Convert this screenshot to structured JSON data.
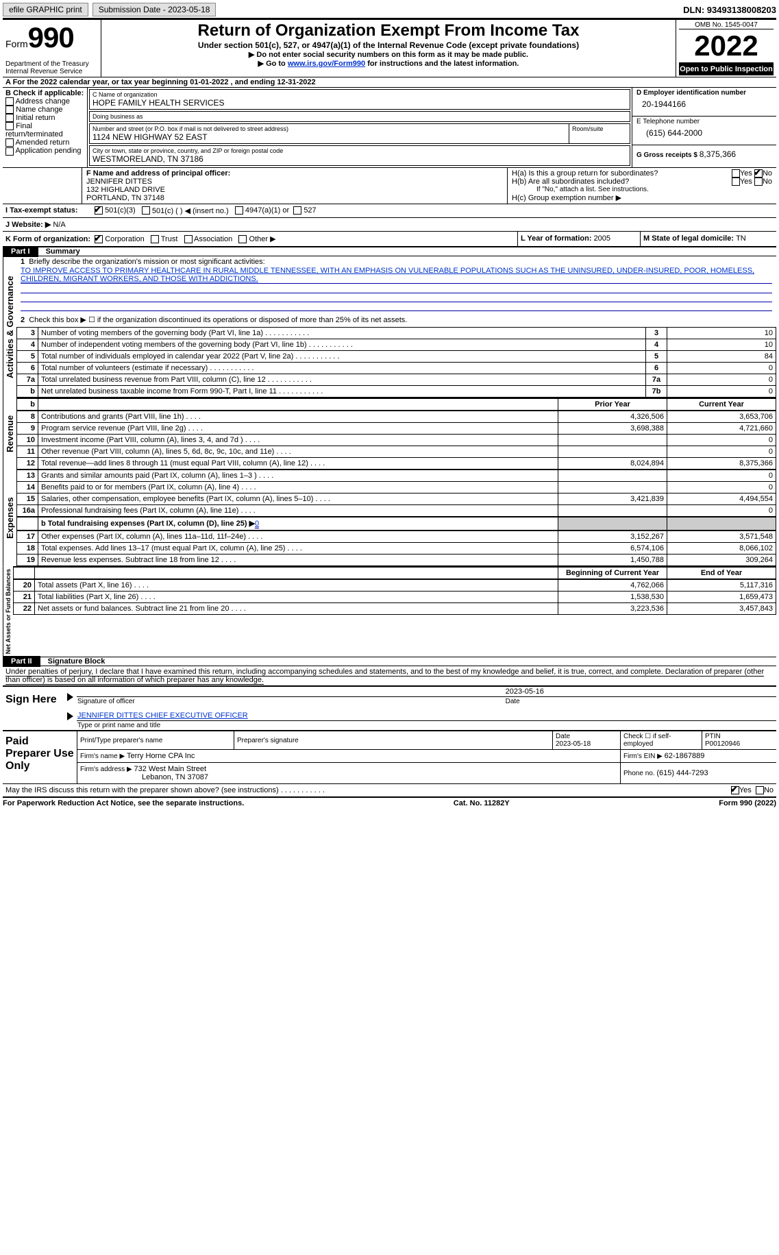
{
  "toolbar": {
    "efile_label": "efile GRAPHIC print",
    "submission_label": "Submission Date - 2023-05-18",
    "dln_label": "DLN: 93493138008203"
  },
  "header": {
    "form_word": "Form",
    "form_number": "990",
    "dept": "Department of the Treasury\nInternal Revenue Service",
    "title": "Return of Organization Exempt From Income Tax",
    "subtitle": "Under section 501(c), 527, or 4947(a)(1) of the Internal Revenue Code (except private foundations)",
    "warn1": "▶ Do not enter social security numbers on this form as it may be made public.",
    "warn2_pre": "▶ Go to ",
    "warn2_link": "www.irs.gov/Form990",
    "warn2_post": " for instructions and the latest information.",
    "omb": "OMB No. 1545-0047",
    "year": "2022",
    "inspect": "Open to Public Inspection"
  },
  "lineA": {
    "pre": "A For the 2022 calendar year, or tax year beginning ",
    "begin": "01-01-2022",
    "mid": "   , and ending ",
    "end": "12-31-2022"
  },
  "sectionB": {
    "title": "B Check if applicable:",
    "items": [
      "Address change",
      "Name change",
      "Initial return",
      "Final return/terminated",
      "Amended return",
      "Application pending"
    ]
  },
  "sectionC": {
    "name_label": "C Name of organization",
    "name": "HOPE FAMILY HEALTH SERVICES",
    "dba_label": "Doing business as",
    "dba": "",
    "addr_label": "Number and street (or P.O. box if mail is not delivered to street address)",
    "room_label": "Room/suite",
    "addr": "1124 NEW HIGHWAY 52 EAST",
    "city_label": "City or town, state or province, country, and ZIP or foreign postal code",
    "city": "WESTMORELAND, TN  37186"
  },
  "sectionD": {
    "label": "D Employer identification number",
    "value": "20-1944166"
  },
  "sectionE": {
    "label": "E Telephone number",
    "value": "(615) 644-2000"
  },
  "sectionG": {
    "label": "G Gross receipts $ ",
    "value": "8,375,366"
  },
  "sectionF": {
    "label": "F Name and address of principal officer:",
    "name": "JENNIFER DITTES",
    "addr1": "132 HIGHLAND DRIVE",
    "addr2": "PORTLAND, TN  37148"
  },
  "sectionH": {
    "a": "H(a)  Is this a group return for subordinates?",
    "b": "H(b)  Are all subordinates included?",
    "b_note": "If \"No,\" attach a list. See instructions.",
    "c": "H(c)  Group exemption number ▶",
    "yes": "Yes",
    "no": "No"
  },
  "sectionI": {
    "label": "I    Tax-exempt status:",
    "opt1": "501(c)(3)",
    "opt2": "501(c) (  ) ◀ (insert no.)",
    "opt3": "4947(a)(1) or",
    "opt4": "527"
  },
  "sectionJ": {
    "label": "J   Website: ▶",
    "value": "  N/A"
  },
  "sectionK": {
    "label": "K Form of organization:",
    "o1": "Corporation",
    "o2": "Trust",
    "o3": "Association",
    "o4": "Other ▶"
  },
  "sectionL": {
    "label": "L Year of formation: ",
    "value": "2005"
  },
  "sectionM": {
    "label": "M State of legal domicile: ",
    "value": "TN"
  },
  "parts": {
    "p1": "Part I",
    "p1_title": "Summary",
    "p2": "Part II",
    "p2_title": "Signature Block"
  },
  "vlabels": {
    "act": "Activities & Governance",
    "rev": "Revenue",
    "exp": "Expenses",
    "net": "Net Assets or Fund Balances"
  },
  "summary": {
    "l1_pre": "Briefly describe the organization's mission or most significant activities:",
    "l1_text": "TO IMPROVE ACCESS TO PRIMARY HEALTHCARE IN RURAL MIDDLE TENNESSEE, WITH AN EMPHASIS ON VULNERABLE POPULATIONS SUCH AS THE UNINSURED, UNDER-INSURED, POOR, HOMELESS, CHILDREN, MIGRANT WORKERS, AND THOSE WITH ADDICTIONS.",
    "l2": "Check this box ▶ ☐  if the organization discontinued its operations or disposed of more than 25% of its net assets.",
    "rows_a": [
      {
        "n": "3",
        "d": "Number of voting members of the governing body (Part VI, line 1a)",
        "box": "3",
        "v": "10"
      },
      {
        "n": "4",
        "d": "Number of independent voting members of the governing body (Part VI, line 1b)",
        "box": "4",
        "v": "10"
      },
      {
        "n": "5",
        "d": "Total number of individuals employed in calendar year 2022 (Part V, line 2a)",
        "box": "5",
        "v": "84"
      },
      {
        "n": "6",
        "d": "Total number of volunteers (estimate if necessary)",
        "box": "6",
        "v": "0"
      },
      {
        "n": "7a",
        "d": "Total unrelated business revenue from Part VIII, column (C), line 12",
        "box": "7a",
        "v": "0"
      },
      {
        "n": "b",
        "d": "Net unrelated business taxable income from Form 990-T, Part I, line 11",
        "box": "7b",
        "v": "0"
      }
    ],
    "hdr_prior": "Prior Year",
    "hdr_current": "Current Year",
    "rows_rev": [
      {
        "n": "8",
        "d": "Contributions and grants (Part VIII, line 1h)",
        "p": "4,326,506",
        "c": "3,653,706"
      },
      {
        "n": "9",
        "d": "Program service revenue (Part VIII, line 2g)",
        "p": "3,698,388",
        "c": "4,721,660"
      },
      {
        "n": "10",
        "d": "Investment income (Part VIII, column (A), lines 3, 4, and 7d )",
        "p": "",
        "c": "0"
      },
      {
        "n": "11",
        "d": "Other revenue (Part VIII, column (A), lines 5, 6d, 8c, 9c, 10c, and 11e)",
        "p": "",
        "c": "0"
      },
      {
        "n": "12",
        "d": "Total revenue—add lines 8 through 11 (must equal Part VIII, column (A), line 12)",
        "p": "8,024,894",
        "c": "8,375,366"
      }
    ],
    "rows_exp": [
      {
        "n": "13",
        "d": "Grants and similar amounts paid (Part IX, column (A), lines 1–3 )",
        "p": "",
        "c": "0"
      },
      {
        "n": "14",
        "d": "Benefits paid to or for members (Part IX, column (A), line 4)",
        "p": "",
        "c": "0"
      },
      {
        "n": "15",
        "d": "Salaries, other compensation, employee benefits (Part IX, column (A), lines 5–10)",
        "p": "3,421,839",
        "c": "4,494,554"
      },
      {
        "n": "16a",
        "d": "Professional fundraising fees (Part IX, column (A), line 11e)",
        "p": "",
        "c": "0"
      }
    ],
    "row_16b_pre": "b  Total fundraising expenses (Part IX, column (D), line 25) ▶",
    "row_16b_val": "0",
    "rows_exp2": [
      {
        "n": "17",
        "d": "Other expenses (Part IX, column (A), lines 11a–11d, 11f–24e)",
        "p": "3,152,267",
        "c": "3,571,548"
      },
      {
        "n": "18",
        "d": "Total expenses. Add lines 13–17 (must equal Part IX, column (A), line 25)",
        "p": "6,574,106",
        "c": "8,066,102"
      },
      {
        "n": "19",
        "d": "Revenue less expenses. Subtract line 18 from line 12",
        "p": "1,450,788",
        "c": "309,264"
      }
    ],
    "hdr_begin": "Beginning of Current Year",
    "hdr_end": "End of Year",
    "rows_net": [
      {
        "n": "20",
        "d": "Total assets (Part X, line 16)",
        "p": "4,762,066",
        "c": "5,117,316"
      },
      {
        "n": "21",
        "d": "Total liabilities (Part X, line 26)",
        "p": "1,538,530",
        "c": "1,659,473"
      },
      {
        "n": "22",
        "d": "Net assets or fund balances. Subtract line 21 from line 20",
        "p": "3,223,536",
        "c": "3,457,843"
      }
    ]
  },
  "penalty": "Under penalties of perjury, I declare that I have examined this return, including accompanying schedules and statements, and to the best of my knowledge and belief, it is true, correct, and complete. Declaration of preparer (other than officer) is based on all information of which preparer has any knowledge.",
  "sign": {
    "here": "Sign Here",
    "sig_label": "Signature of officer",
    "date": "2023-05-16",
    "name": "JENNIFER DITTES  CHIEF EXECUTIVE OFFICER",
    "name_label": "Type or print name and title"
  },
  "paid": {
    "title": "Paid Preparer Use Only",
    "print_label": "Print/Type preparer's name",
    "sig_label": "Preparer's signature",
    "date_label": "Date",
    "date": "2023-05-18",
    "check_label": "Check ☐ if self-employed",
    "ptin_label": "PTIN",
    "ptin": "P00120946",
    "firm_name_label": "Firm's name    ▶ ",
    "firm_name": "Terry Horne CPA Inc",
    "firm_ein_label": "Firm's EIN ▶ ",
    "firm_ein": "62-1867889",
    "firm_addr_label": "Firm's address ▶ ",
    "firm_addr1": "732 West Main Street",
    "firm_addr2": "Lebanon, TN  37087",
    "phone_label": "Phone no. ",
    "phone": "(615) 444-7293"
  },
  "discuss": {
    "q": "May the IRS discuss this return with the preparer shown above? (see instructions)",
    "yes": "Yes",
    "no": "No"
  },
  "footer": {
    "left": "For Paperwork Reduction Act Notice, see the separate instructions.",
    "mid": "Cat. No. 11282Y",
    "right": "Form 990 (2022)"
  }
}
